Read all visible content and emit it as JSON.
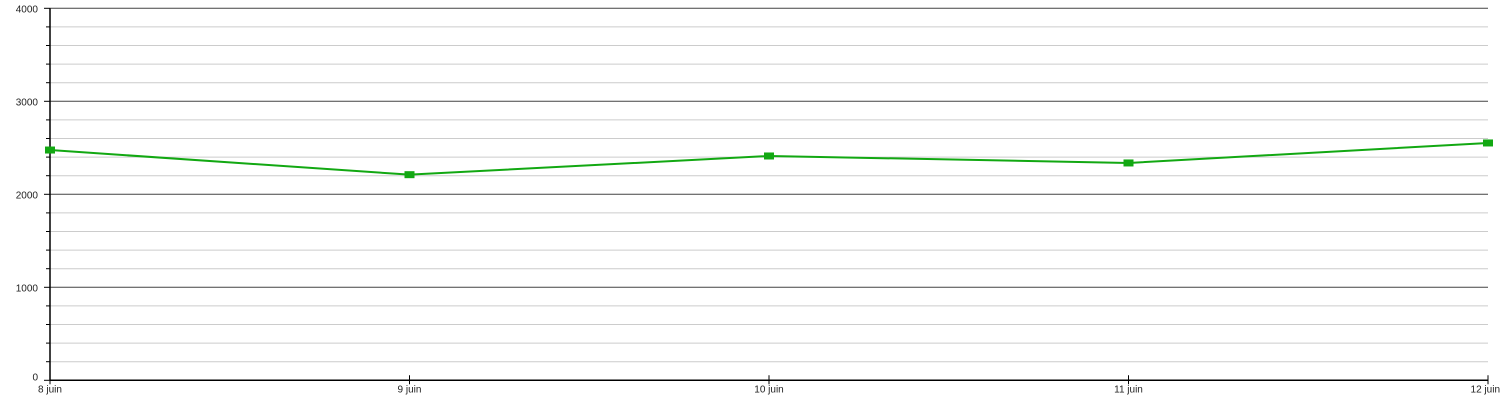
{
  "chart_data": {
    "type": "line",
    "title": "",
    "xlabel": "",
    "ylabel": "",
    "categories": [
      "8 juin",
      "9 juin",
      "10 juin",
      "11 juin",
      "12 juin"
    ],
    "series": [
      {
        "values": [
          2476,
          2211,
          2412,
          2337,
          2552
        ],
        "color": "#12a812"
      }
    ],
    "ylim": [
      0,
      4000
    ],
    "y_ticks": [
      0,
      1000,
      2000,
      3000,
      4000
    ],
    "y_tick_labels": [
      "0",
      "1000",
      "2000",
      "3000",
      "4000"
    ],
    "y_minor_step": 200,
    "grid": true,
    "legend": "none"
  }
}
